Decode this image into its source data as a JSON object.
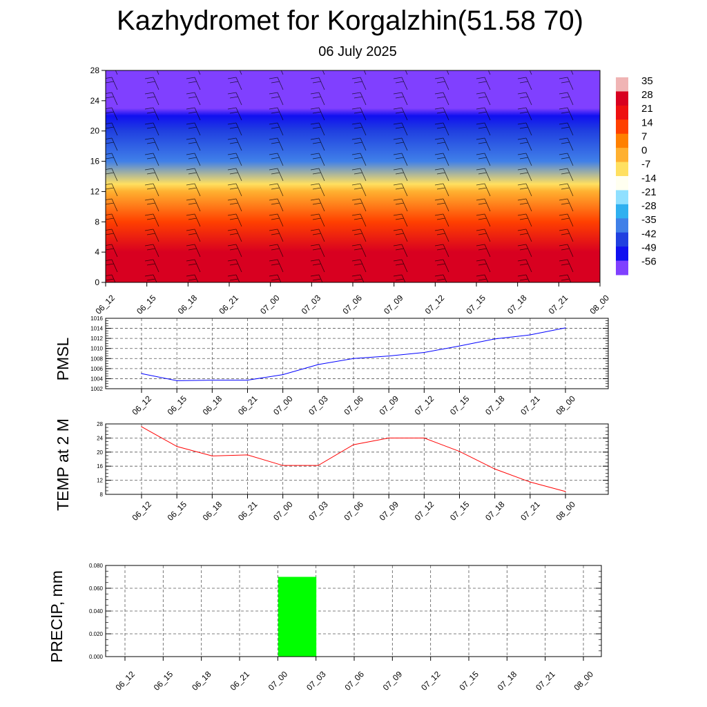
{
  "header": {
    "title": "Kazhydromet for Korgalzhin(51.58 70)",
    "subtitle": "06 July 2025"
  },
  "chart_data": [
    {
      "type": "heatmap",
      "x_ticks": [
        "06_12",
        "06_15",
        "06_18",
        "06_21",
        "07_00",
        "07_03",
        "07_06",
        "07_09",
        "07_12",
        "07_15",
        "07_18",
        "07_21",
        "08_00"
      ],
      "y_ticks": [
        0,
        4,
        8,
        12,
        16,
        20,
        24,
        28
      ],
      "ylim": [
        0,
        28
      ],
      "colorbar": {
        "labels": [
          35,
          28,
          21,
          14,
          7,
          0,
          -7,
          -14,
          -21,
          -28,
          -35,
          -42,
          -49,
          -56
        ],
        "colors": [
          "#f0b4b4",
          "#d80020",
          "#ee1010",
          "#ff4000",
          "#ff8000",
          "#ffb030",
          "#ffe060",
          "#fffff0",
          "#90e0ff",
          "#30b0f0",
          "#4080e8",
          "#2040e0",
          "#1010f0",
          "#8040ff"
        ]
      },
      "temperature_by_level": [
        {
          "level": 0,
          "value": 30
        },
        {
          "level": 4,
          "value": 25
        },
        {
          "level": 8,
          "value": 12
        },
        {
          "level": 12,
          "value": 0
        },
        {
          "level": 13,
          "value": -8
        },
        {
          "level": 16,
          "value": -35
        },
        {
          "level": 20,
          "value": -45
        },
        {
          "level": 22,
          "value": -50
        },
        {
          "level": 23,
          "value": -58
        },
        {
          "level": 28,
          "value": -60
        }
      ]
    },
    {
      "type": "line",
      "ylabel": "PMSL",
      "x": [
        "06_12",
        "06_15",
        "06_18",
        "06_21",
        "07_00",
        "07_03",
        "07_06",
        "07_09",
        "07_12",
        "07_15",
        "07_18",
        "07_21",
        "08_00"
      ],
      "values": [
        1005.0,
        1003.6,
        1003.7,
        1003.7,
        1004.8,
        1006.8,
        1008.0,
        1008.5,
        1009.2,
        1010.5,
        1011.9,
        1012.7,
        1014.1
      ],
      "ylim": [
        1002,
        1016
      ],
      "y_ticks": [
        1002,
        1004,
        1006,
        1008,
        1010,
        1012,
        1014,
        1016
      ],
      "color": "#0000ff"
    },
    {
      "type": "line",
      "ylabel": "TEMP at 2 M",
      "x": [
        "06_12",
        "06_15",
        "06_18",
        "06_21",
        "07_00",
        "07_03",
        "07_06",
        "07_09",
        "07_12",
        "07_15",
        "07_18",
        "07_21",
        "08_00"
      ],
      "values": [
        27.2,
        21.6,
        18.9,
        19.2,
        16.2,
        16.2,
        22.1,
        24.0,
        24.0,
        20.2,
        15.2,
        11.5,
        8.8
      ],
      "ylim": [
        8,
        28
      ],
      "y_ticks": [
        8,
        12,
        16,
        20,
        24,
        28
      ],
      "color": "#ff0000"
    },
    {
      "type": "bar",
      "ylabel": "PRECIP, mm",
      "categories": [
        "06_12",
        "06_15",
        "06_18",
        "06_21",
        "07_00",
        "07_03",
        "07_06",
        "07_09",
        "07_12",
        "07_15",
        "07_18",
        "07_21",
        "08_00"
      ],
      "values": [
        0,
        0,
        0,
        0,
        0,
        0.07,
        0,
        0,
        0,
        0,
        0,
        0,
        0
      ],
      "ylim": [
        0,
        0.08
      ],
      "y_ticks": [
        "0.000",
        "0.020",
        "0.040",
        "0.060",
        "0.080"
      ],
      "color": "#00ff00"
    }
  ]
}
